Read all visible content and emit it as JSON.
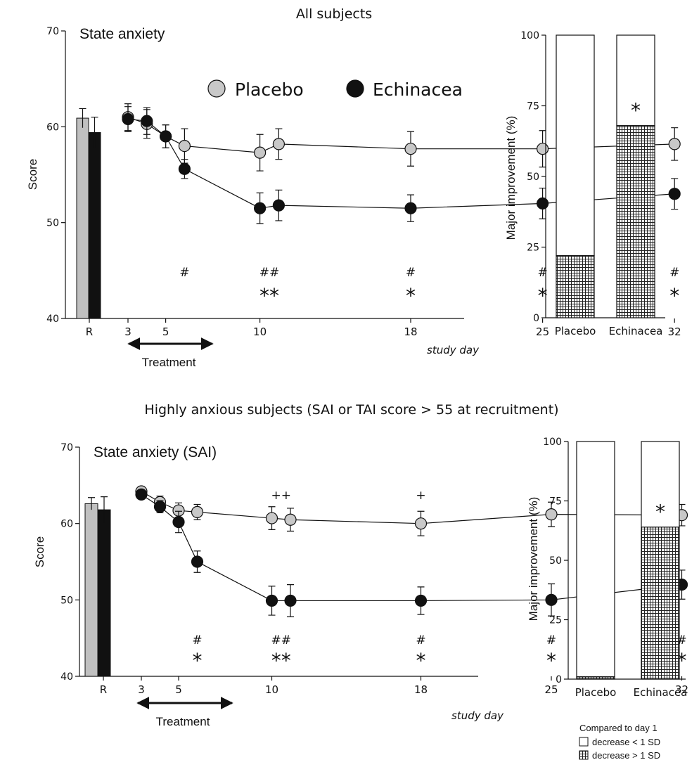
{
  "chart_data": [
    {
      "type": "line",
      "figure_title": "All subjects",
      "title": "State anxiety",
      "ylabel": "Score",
      "xlabel": "study day",
      "ylim": [
        40,
        70
      ],
      "yticks": [
        "40",
        "50",
        "60",
        "70"
      ],
      "xticks": [
        "R",
        "3",
        "5",
        "10",
        "18",
        "25",
        "32"
      ],
      "legend": [
        "Placebo",
        "Echinacea"
      ],
      "legend_position": "top-right",
      "treatment_label": "Treatment",
      "baseline_bars": [
        {
          "name": "Placebo",
          "value": 60.9,
          "err": 1.0,
          "color": "#c0c0c0"
        },
        {
          "name": "Echinacea",
          "value": 59.4,
          "err": 1.6,
          "color": "#111111"
        }
      ],
      "series": [
        {
          "name": "Placebo",
          "fill": "#c8c8c8",
          "x": [
            3,
            4,
            5,
            6,
            10,
            11,
            18,
            25,
            32
          ],
          "values": [
            61.0,
            60.3,
            59.0,
            58.0,
            57.3,
            58.2,
            57.7,
            57.7,
            58.2
          ],
          "err": [
            1.4,
            1.5,
            1.2,
            1.8,
            1.9,
            1.6,
            1.8,
            1.9,
            1.7
          ]
        },
        {
          "name": "Echinacea",
          "fill": "#111111",
          "x": [
            3,
            4,
            5,
            6,
            10,
            11,
            18,
            25,
            32
          ],
          "values": [
            60.8,
            60.6,
            59.0,
            55.6,
            51.5,
            51.8,
            51.5,
            52.0,
            53.0
          ],
          "err": [
            1.3,
            1.4,
            1.2,
            1.0,
            1.6,
            1.6,
            1.4,
            1.6,
            1.6
          ]
        }
      ],
      "annotations": [
        {
          "x": 6,
          "row": 1,
          "text": "#"
        },
        {
          "x": 10.5,
          "row": 1,
          "text": "##"
        },
        {
          "x": 18,
          "row": 1,
          "text": "#"
        },
        {
          "x": 25,
          "row": 1,
          "text": "#"
        },
        {
          "x": 32,
          "row": 1,
          "text": "#"
        },
        {
          "x": 10.5,
          "row": 2,
          "text": "**"
        },
        {
          "x": 18,
          "row": 2,
          "text": "*"
        },
        {
          "x": 25,
          "row": 2,
          "text": "*"
        },
        {
          "x": 32,
          "row": 2,
          "text": "*"
        }
      ]
    },
    {
      "type": "bar",
      "ylabel": "Major improvement  (%)",
      "categories": [
        "Placebo",
        "Echinacea"
      ],
      "ylim": [
        0,
        100
      ],
      "yticks": [
        "0",
        "25",
        "50",
        "75",
        "100"
      ],
      "stacked": true,
      "series": [
        {
          "name": "decrease > 1 SD",
          "values": [
            22,
            68
          ]
        },
        {
          "name": "decrease < 1 SD",
          "values": [
            78,
            32
          ]
        }
      ],
      "significance": [
        {
          "category": "Echinacea",
          "text": "*"
        }
      ]
    },
    {
      "type": "line",
      "figure_title": "Highly anxious subjects (SAI or TAI score > 55 at recruitment)",
      "title": "State anxiety (SAI)",
      "ylabel": "Score",
      "xlabel": "study day",
      "ylim": [
        40,
        70
      ],
      "yticks": [
        "40",
        "50",
        "60",
        "70"
      ],
      "xticks": [
        "R",
        "3",
        "5",
        "10",
        "18",
        "25",
        "32"
      ],
      "treatment_label": "Treatment",
      "baseline_bars": [
        {
          "name": "Placebo",
          "value": 62.6,
          "err": 0.8,
          "color": "#c0c0c0"
        },
        {
          "name": "Echinacea",
          "value": 61.8,
          "err": 1.7,
          "color": "#111111"
        }
      ],
      "series": [
        {
          "name": "Placebo",
          "fill": "#c8c8c8",
          "x": [
            3,
            4,
            5,
            6,
            10,
            11,
            18,
            25,
            32
          ],
          "values": [
            64.2,
            62.8,
            61.7,
            61.5,
            60.7,
            60.5,
            60.0,
            61.2,
            61.1
          ],
          "err": [
            0.6,
            0.8,
            1.0,
            1.0,
            1.5,
            1.5,
            1.6,
            1.6,
            1.4
          ]
        },
        {
          "name": "Echinacea",
          "fill": "#111111",
          "x": [
            3,
            4,
            5,
            6,
            10,
            11,
            18,
            25,
            32
          ],
          "values": [
            63.8,
            62.2,
            60.2,
            55.0,
            49.9,
            49.9,
            49.9,
            50.0,
            52.0
          ],
          "err": [
            0.6,
            0.8,
            1.4,
            1.4,
            1.9,
            2.1,
            1.8,
            2.1,
            1.9
          ]
        }
      ],
      "annotations": [
        {
          "x": 10.5,
          "row": 0,
          "text": "++"
        },
        {
          "x": 18,
          "row": 0,
          "text": "+"
        },
        {
          "x": 6,
          "row": 1,
          "text": "#"
        },
        {
          "x": 10.5,
          "row": 1,
          "text": "##"
        },
        {
          "x": 18,
          "row": 1,
          "text": "#"
        },
        {
          "x": 25,
          "row": 1,
          "text": "#"
        },
        {
          "x": 32,
          "row": 1,
          "text": "#"
        },
        {
          "x": 6,
          "row": 2,
          "text": "*"
        },
        {
          "x": 10.5,
          "row": 2,
          "text": "**"
        },
        {
          "x": 18,
          "row": 2,
          "text": "*"
        },
        {
          "x": 25,
          "row": 2,
          "text": "*"
        },
        {
          "x": 32,
          "row": 2,
          "text": "*"
        }
      ]
    },
    {
      "type": "bar",
      "ylabel": "Major improvement  (%)",
      "categories": [
        "Placebo",
        "Echinacea"
      ],
      "ylim": [
        0,
        100
      ],
      "yticks": [
        "0",
        "25",
        "50",
        "75",
        "100"
      ],
      "stacked": true,
      "series": [
        {
          "name": "decrease > 1 SD",
          "values": [
            1,
            64
          ]
        },
        {
          "name": "decrease < 1 SD",
          "values": [
            99,
            36
          ]
        }
      ],
      "significance": [
        {
          "category": "Echinacea",
          "text": "*"
        }
      ],
      "legend_title": "Compared to day 1",
      "legend": [
        "decrease < 1 SD",
        "decrease > 1 SD"
      ]
    }
  ]
}
